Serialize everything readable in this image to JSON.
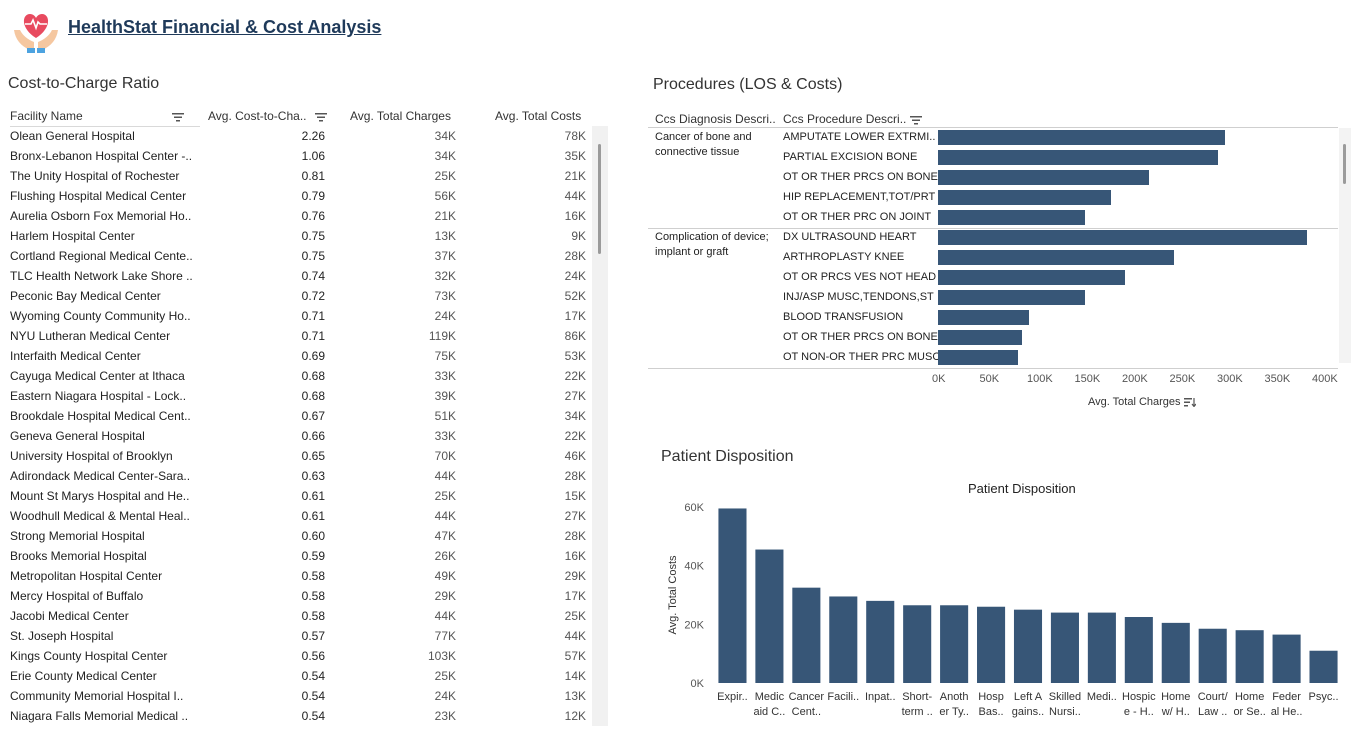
{
  "header": {
    "title": "HealthStat Financial & Cost Analysis",
    "logo_icon": "heart-in-hands-icon"
  },
  "colors": {
    "bar": "#375677",
    "title": "#1f3a5a"
  },
  "cost_to_charge": {
    "title": "Cost-to-Charge Ratio",
    "columns": [
      "Facility Name",
      "Avg. Cost-to-Cha..",
      "Avg. Total Charges",
      "Avg. Total Costs"
    ],
    "rows": [
      [
        "Olean General Hospital",
        "2.26",
        "34K",
        "78K"
      ],
      [
        "Bronx-Lebanon Hospital Center -..",
        "1.06",
        "34K",
        "35K"
      ],
      [
        "The Unity Hospital of Rochester",
        "0.81",
        "25K",
        "21K"
      ],
      [
        "Flushing Hospital Medical Center",
        "0.79",
        "56K",
        "44K"
      ],
      [
        "Aurelia Osborn Fox Memorial Ho..",
        "0.76",
        "21K",
        "16K"
      ],
      [
        "Harlem Hospital Center",
        "0.75",
        "13K",
        "9K"
      ],
      [
        "Cortland Regional Medical Cente..",
        "0.75",
        "37K",
        "28K"
      ],
      [
        "TLC Health Network Lake Shore ..",
        "0.74",
        "32K",
        "24K"
      ],
      [
        "Peconic Bay Medical Center",
        "0.72",
        "73K",
        "52K"
      ],
      [
        "Wyoming County Community Ho..",
        "0.71",
        "24K",
        "17K"
      ],
      [
        "NYU Lutheran Medical Center",
        "0.71",
        "119K",
        "86K"
      ],
      [
        "Interfaith Medical Center",
        "0.69",
        "75K",
        "53K"
      ],
      [
        "Cayuga Medical Center at Ithaca",
        "0.68",
        "33K",
        "22K"
      ],
      [
        "Eastern Niagara Hospital - Lock..",
        "0.68",
        "39K",
        "27K"
      ],
      [
        "Brookdale Hospital Medical Cent..",
        "0.67",
        "51K",
        "34K"
      ],
      [
        "Geneva General Hospital",
        "0.66",
        "33K",
        "22K"
      ],
      [
        "University Hospital of Brooklyn",
        "0.65",
        "70K",
        "46K"
      ],
      [
        "Adirondack Medical Center-Sara..",
        "0.63",
        "44K",
        "28K"
      ],
      [
        "Mount St Marys Hospital and He..",
        "0.61",
        "25K",
        "15K"
      ],
      [
        "Woodhull Medical & Mental Heal..",
        "0.61",
        "44K",
        "27K"
      ],
      [
        "Strong Memorial Hospital",
        "0.60",
        "47K",
        "28K"
      ],
      [
        "Brooks Memorial Hospital",
        "0.59",
        "26K",
        "16K"
      ],
      [
        "Metropolitan Hospital Center",
        "0.58",
        "49K",
        "29K"
      ],
      [
        "Mercy Hospital of Buffalo",
        "0.58",
        "29K",
        "17K"
      ],
      [
        "Jacobi Medical Center",
        "0.58",
        "44K",
        "25K"
      ],
      [
        "St. Joseph Hospital",
        "0.57",
        "77K",
        "44K"
      ],
      [
        "Kings County Hospital Center",
        "0.56",
        "103K",
        "57K"
      ],
      [
        "Erie County Medical Center",
        "0.54",
        "25K",
        "14K"
      ],
      [
        "Community Memorial Hospital I..",
        "0.54",
        "24K",
        "13K"
      ],
      [
        "Niagara Falls Memorial Medical ..",
        "0.54",
        "23K",
        "12K"
      ]
    ]
  },
  "procedures": {
    "title": "Procedures (LOS & Costs)",
    "col_diag": "Ccs Diagnosis Descri..",
    "col_proc": "Ccs Procedure Descri..",
    "groups": [
      {
        "label": "Cancer of bone and connective tissue",
        "items": [
          [
            "AMPUTATE LOWER EXTRMI..",
            302000
          ],
          [
            "PARTIAL EXCISION BONE",
            295000
          ],
          [
            "OT OR THER PRCS ON BONE",
            222000
          ],
          [
            "HIP REPLACEMENT,TOT/PRT",
            182000
          ],
          [
            "OT OR THER PRC ON JOINT",
            155000
          ]
        ]
      },
      {
        "label": "Complication of device; implant or graft",
        "items": [
          [
            "DX ULTRASOUND HEART",
            388000
          ],
          [
            "ARTHROPLASTY KNEE",
            248000
          ],
          [
            "OT OR PRCS VES NOT HEAD",
            197000
          ],
          [
            "INJ/ASP MUSC,TENDONS,ST",
            155000
          ],
          [
            "BLOOD TRANSFUSION",
            96000
          ],
          [
            "OT OR THER PRCS ON BONE",
            88000
          ],
          [
            "OT NON-OR THER PRC MUSC",
            84000
          ]
        ]
      }
    ],
    "x_ticks": [
      "0K",
      "50K",
      "100K",
      "150K",
      "200K",
      "250K",
      "300K",
      "350K",
      "400K"
    ],
    "xlabel": "Avg. Total Charges"
  },
  "disposition": {
    "title": "Patient Disposition",
    "chart_title": "Patient Disposition"
  },
  "chart_data": {
    "type": "bar",
    "title": "Patient Disposition",
    "xlabel": "",
    "ylabel": "Avg. Total Costs",
    "ylim": [
      0,
      60000
    ],
    "y_ticks": [
      "0K",
      "20K",
      "40K",
      "60K"
    ],
    "categories": [
      [
        "Expir.."
      ],
      [
        "Medic",
        "aid C.."
      ],
      [
        "Cancer",
        "Cent.."
      ],
      [
        "Facili.."
      ],
      [
        "Inpat.."
      ],
      [
        "Short-",
        "term .."
      ],
      [
        "Anoth",
        "er Ty.."
      ],
      [
        "Hosp",
        "Bas.."
      ],
      [
        "Left A",
        "gains.."
      ],
      [
        "Skilled",
        "Nursi.."
      ],
      [
        "Medi.."
      ],
      [
        "Hospic",
        "e - H.."
      ],
      [
        "Home",
        "w/ H.."
      ],
      [
        "Court/",
        "Law .."
      ],
      [
        "Home",
        "or Se.."
      ],
      [
        "Feder",
        "al He.."
      ],
      [
        "Psyc.."
      ]
    ],
    "values": [
      59500,
      45500,
      32500,
      29500,
      28000,
      26500,
      26500,
      26000,
      25000,
      24000,
      24000,
      22500,
      20500,
      18500,
      18000,
      16500,
      11000
    ]
  }
}
